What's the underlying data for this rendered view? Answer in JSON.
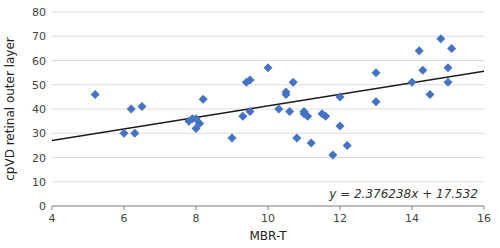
{
  "chart_data": {
    "type": "scatter",
    "xlabel": "MBR-T",
    "ylabel": "cpVD retinal outer layer",
    "annotations": [
      {
        "text": "y = 2.376238x + 17.532"
      }
    ],
    "xlim": [
      4,
      16
    ],
    "ylim": [
      0,
      80
    ],
    "xticks": [
      4,
      6,
      8,
      10,
      12,
      14,
      16
    ],
    "yticks": [
      0,
      10,
      20,
      30,
      40,
      50,
      60,
      70,
      80
    ],
    "grid": "y",
    "series": [
      {
        "type": "scatter",
        "color": "#4472C4",
        "marker": "diamond",
        "x": [
          5.2,
          6.0,
          6.2,
          6.3,
          6.5,
          7.8,
          7.9,
          8.0,
          8.0,
          8.1,
          8.2,
          9.0,
          9.3,
          9.4,
          9.5,
          9.5,
          10.0,
          10.3,
          10.5,
          10.5,
          10.6,
          10.7,
          10.8,
          11.0,
          11.0,
          11.1,
          11.2,
          11.5,
          11.6,
          11.8,
          12.0,
          12.0,
          12.2,
          13.0,
          13.0,
          14.0,
          14.2,
          14.3,
          14.5,
          14.8,
          15.0,
          15.0,
          15.1
        ],
        "values": [
          46,
          30,
          40,
          30,
          41,
          35,
          36,
          32,
          36,
          34,
          44,
          28,
          37,
          51,
          52,
          39,
          57,
          40,
          46,
          47,
          39,
          51,
          28,
          38,
          39,
          37,
          26,
          38,
          37,
          21,
          33,
          45,
          25,
          43,
          55,
          51,
          64,
          56,
          46,
          69,
          51,
          57,
          65
        ]
      },
      {
        "type": "line",
        "color": "#1a1a1a",
        "x": [
          4,
          16
        ],
        "values": [
          27.036952,
          55.551808
        ]
      }
    ]
  }
}
